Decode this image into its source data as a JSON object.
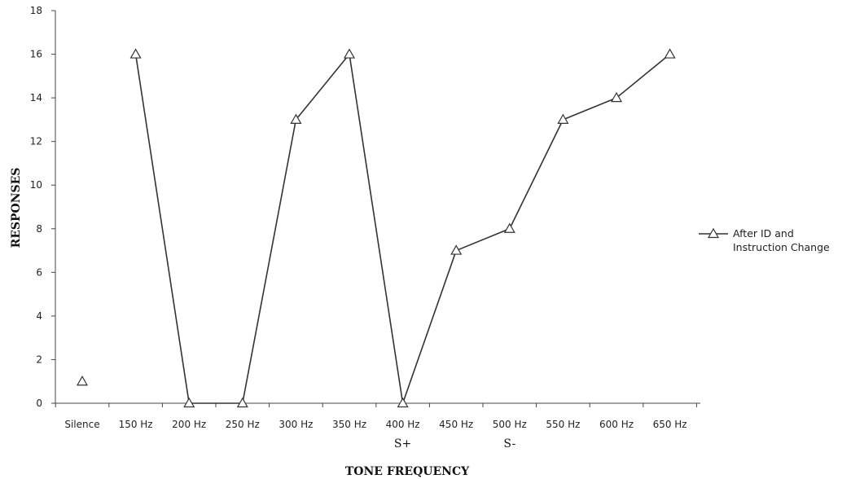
{
  "chart_data": {
    "type": "line",
    "xlabel": "TONE FREQUENCY",
    "ylabel": "RESPONSES",
    "ylim": [
      0,
      18
    ],
    "yticks": [
      0,
      2,
      4,
      6,
      8,
      10,
      12,
      14,
      16,
      18
    ],
    "categories": [
      "Silence",
      "150 Hz",
      "200 Hz",
      "250 Hz",
      "300 Hz",
      "350 Hz",
      "400 Hz",
      "450 Hz",
      "500 Hz",
      "550 Hz",
      "600 Hz",
      "650 Hz"
    ],
    "category_markers": [
      {
        "category": "400 Hz",
        "label": "S+"
      },
      {
        "category": "500 Hz",
        "label": "S-"
      }
    ],
    "series": [
      {
        "name": "After ID and Instruction Change",
        "legend_lines": [
          "After ID and",
          "Instruction Change"
        ],
        "marker": "triangle",
        "color": "#333333",
        "values": [
          1,
          16,
          0,
          0,
          13,
          16,
          0,
          7,
          8,
          13,
          14,
          16
        ],
        "segments": [
          [
            1,
            2,
            3,
            4,
            5,
            6,
            7,
            8,
            9,
            10,
            11
          ],
          [
            0
          ]
        ]
      }
    ],
    "grid": false,
    "legend_position": "right"
  }
}
